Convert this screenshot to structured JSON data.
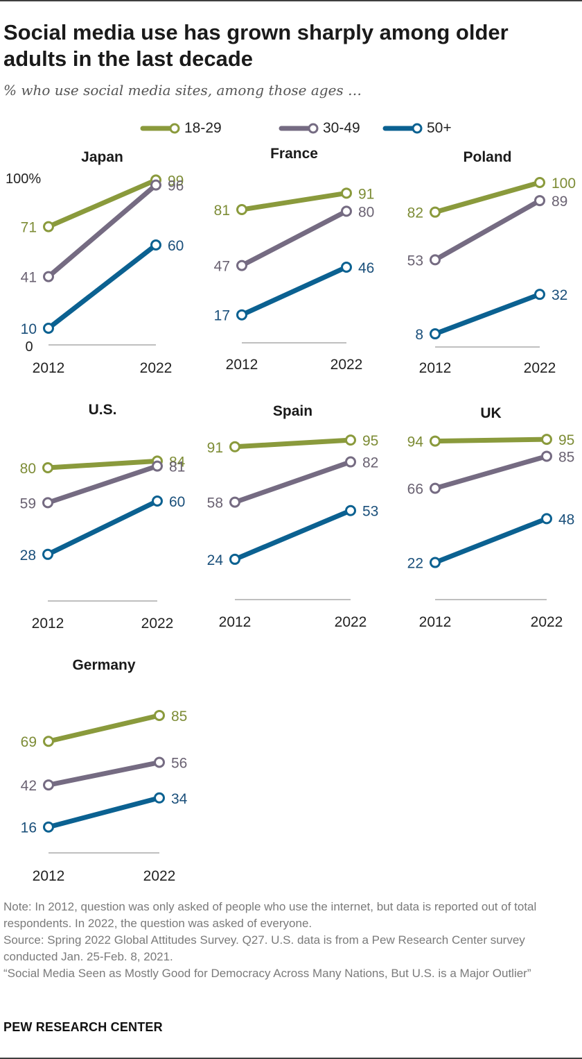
{
  "title": "Social media use has grown sharply among older adults in the last decade",
  "subtitle": "% who use social media sites, among those ages …",
  "legend": [
    {
      "label": "18-29",
      "color": "#8a9a3c"
    },
    {
      "label": "30-49",
      "color": "#756b82"
    },
    {
      "label": "50+",
      "color": "#0b6191"
    }
  ],
  "chart_data": [
    {
      "type": "line",
      "title": "Japan",
      "x": [
        "2012",
        "2022"
      ],
      "ylim": [
        0,
        100
      ],
      "y_axis_labels": [
        "100%",
        "0"
      ],
      "series": [
        {
          "name": "18-29",
          "values": [
            71,
            99
          ]
        },
        {
          "name": "30-49",
          "values": [
            41,
            96
          ]
        },
        {
          "name": "50+",
          "values": [
            10,
            60
          ]
        }
      ]
    },
    {
      "type": "line",
      "title": "France",
      "x": [
        "2012",
        "2022"
      ],
      "ylim": [
        0,
        100
      ],
      "series": [
        {
          "name": "18-29",
          "values": [
            81,
            91
          ]
        },
        {
          "name": "30-49",
          "values": [
            47,
            80
          ]
        },
        {
          "name": "50+",
          "values": [
            17,
            46
          ]
        }
      ]
    },
    {
      "type": "line",
      "title": "Poland",
      "x": [
        "2012",
        "2022"
      ],
      "ylim": [
        0,
        100
      ],
      "series": [
        {
          "name": "18-29",
          "values": [
            82,
            100
          ]
        },
        {
          "name": "30-49",
          "values": [
            53,
            89
          ]
        },
        {
          "name": "50+",
          "values": [
            8,
            32
          ]
        }
      ]
    },
    {
      "type": "line",
      "title": "U.S.",
      "x": [
        "2012",
        "2022"
      ],
      "ylim": [
        0,
        100
      ],
      "series": [
        {
          "name": "18-29",
          "values": [
            80,
            84
          ]
        },
        {
          "name": "30-49",
          "values": [
            59,
            81
          ]
        },
        {
          "name": "50+",
          "values": [
            28,
            60
          ]
        }
      ]
    },
    {
      "type": "line",
      "title": "Spain",
      "x": [
        "2012",
        "2022"
      ],
      "ylim": [
        0,
        100
      ],
      "series": [
        {
          "name": "18-29",
          "values": [
            91,
            95
          ]
        },
        {
          "name": "30-49",
          "values": [
            58,
            82
          ]
        },
        {
          "name": "50+",
          "values": [
            24,
            53
          ]
        }
      ]
    },
    {
      "type": "line",
      "title": "UK",
      "x": [
        "2012",
        "2022"
      ],
      "ylim": [
        0,
        100
      ],
      "series": [
        {
          "name": "18-29",
          "values": [
            94,
            95
          ]
        },
        {
          "name": "30-49",
          "values": [
            66,
            85
          ]
        },
        {
          "name": "50+",
          "values": [
            22,
            48
          ]
        }
      ]
    },
    {
      "type": "line",
      "title": "Germany",
      "x": [
        "2012",
        "2022"
      ],
      "ylim": [
        0,
        100
      ],
      "series": [
        {
          "name": "18-29",
          "values": [
            69,
            85
          ]
        },
        {
          "name": "30-49",
          "values": [
            42,
            56
          ]
        },
        {
          "name": "50+",
          "values": [
            16,
            34
          ]
        }
      ]
    }
  ],
  "footer": {
    "note": "Note: In 2012, question was only asked of people who use the internet, but data is reported out of total respondents. In 2022, the question was asked of everyone.",
    "source": "Source: Spring 2022 Global Attitudes Survey. Q27. U.S. data is from a Pew Research Center survey conducted Jan. 25-Feb. 8, 2021.",
    "report": "“Social Media Seen as Mostly Good for Democracy Across Many Nations, But U.S. is a Major Outlier”",
    "brand": "PEW RESEARCH CENTER"
  }
}
